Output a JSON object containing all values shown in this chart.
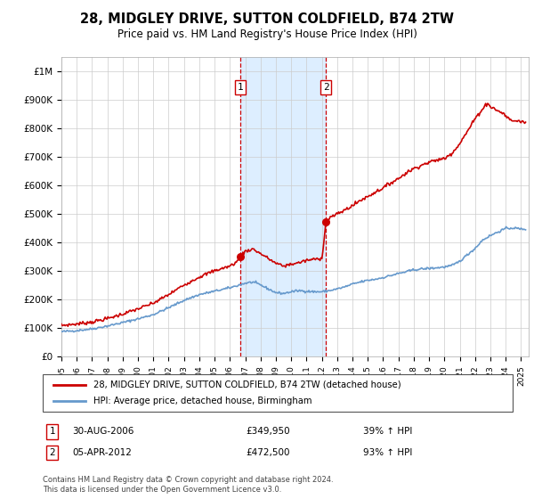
{
  "title": "28, MIDGLEY DRIVE, SUTTON COLDFIELD, B74 2TW",
  "subtitle": "Price paid vs. HM Land Registry's House Price Index (HPI)",
  "xlim_start": 1995.0,
  "xlim_end": 2025.5,
  "ylim": [
    0,
    1050000
  ],
  "yticks": [
    0,
    100000,
    200000,
    300000,
    400000,
    500000,
    600000,
    700000,
    800000,
    900000,
    1000000
  ],
  "ytick_labels": [
    "£0",
    "£100K",
    "£200K",
    "£300K",
    "£400K",
    "£500K",
    "£600K",
    "£700K",
    "£800K",
    "£900K",
    "£1M"
  ],
  "transaction1_date": 2006.66,
  "transaction1_price": 349950,
  "transaction1_label": "1",
  "transaction1_text": "30-AUG-2006",
  "transaction1_price_text": "£349,950",
  "transaction1_hpi": "39% ↑ HPI",
  "transaction2_date": 2012.27,
  "transaction2_price": 472500,
  "transaction2_label": "2",
  "transaction2_text": "05-APR-2012",
  "transaction2_price_text": "£472,500",
  "transaction2_hpi": "93% ↑ HPI",
  "hpi_line_color": "#6699cc",
  "property_line_color": "#cc0000",
  "marker_color": "#cc0000",
  "transaction_box_color": "#cc0000",
  "shade_color": "#ddeeff",
  "legend_label_property": "28, MIDGLEY DRIVE, SUTTON COLDFIELD, B74 2TW (detached house)",
  "legend_label_hpi": "HPI: Average price, detached house, Birmingham",
  "footnote": "Contains HM Land Registry data © Crown copyright and database right 2024.\nThis data is licensed under the Open Government Licence v3.0."
}
